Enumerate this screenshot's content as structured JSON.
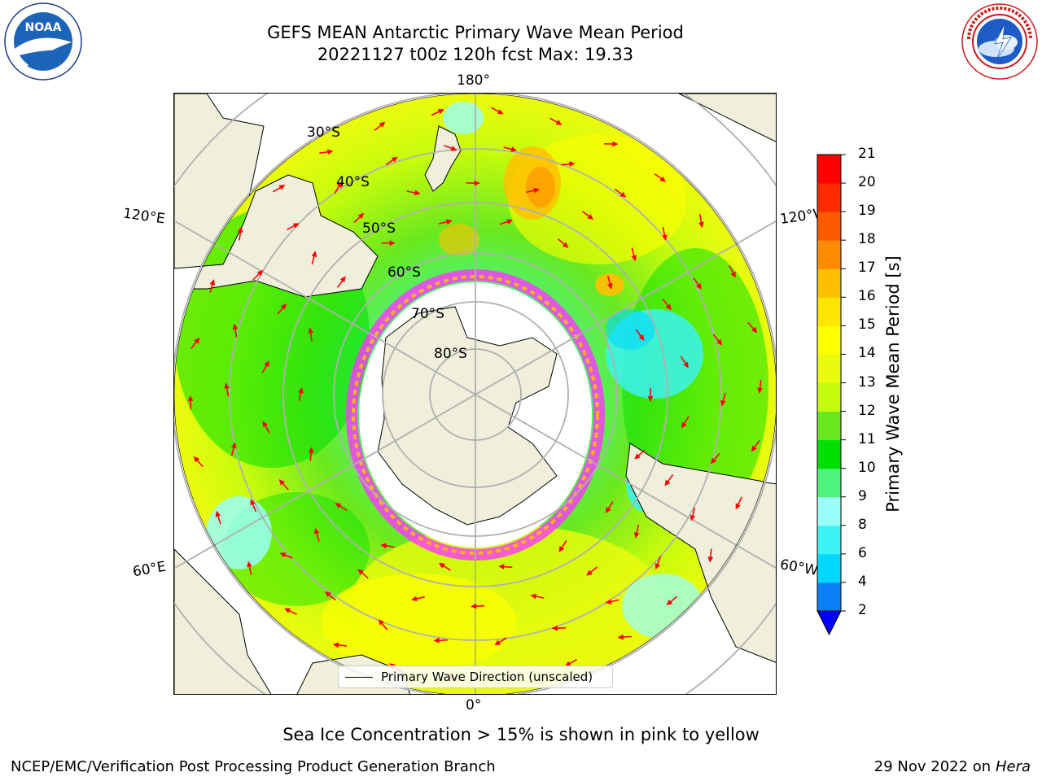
{
  "title": {
    "line1": "GEFS MEAN Antarctic Primary Wave Mean Period",
    "line2": "20221127 t00z 120h fcst   Max: 19.33"
  },
  "logos": {
    "left": {
      "name": "noaa-logo",
      "text": "NOAA",
      "ring_text": "NATIONAL OCEANIC AND ATMOSPHERIC ADMINISTRATION · U.S. DEPARTMENT OF COMMERCE"
    },
    "right": {
      "name": "nws-logo",
      "ring_text": "NATIONAL WEATHER SERVICE"
    }
  },
  "map": {
    "projection": "south-polar-stereographic",
    "longitude_labels": {
      "top": "180°",
      "bottom": "0°",
      "left_upper": "120°E",
      "left_lower": "60°E",
      "right_upper": "120°W",
      "right_lower": "60°W"
    },
    "latitude_labels": [
      "30°S",
      "40°S",
      "50°S",
      "60°S",
      "70°S",
      "80°S"
    ],
    "legend_label": "Primary Wave Direction (unscaled)",
    "colors": {
      "land": "#efefdb",
      "ice": "#ffffff",
      "arrow": "#ff0000",
      "grid": "#b0b0b0",
      "coast": "#000000"
    }
  },
  "colorbar": {
    "label": "Primary Wave Mean Period [s]",
    "ticks": [
      "2",
      "4",
      "6",
      "8",
      "9",
      "10",
      "11",
      "12",
      "13",
      "14",
      "15",
      "16",
      "17",
      "18",
      "19",
      "20",
      "21"
    ],
    "colors": [
      "#0a7ff6",
      "#00d8ff",
      "#3cf2f2",
      "#9afffa",
      "#4df37a",
      "#00e000",
      "#6ae81e",
      "#c5fb0d",
      "#ebfb0e",
      "#ffff00",
      "#ffe500",
      "#ffbf00",
      "#ff8c00",
      "#ff5a00",
      "#ff2a00",
      "#ff0000"
    ],
    "under_color": "#0000ff"
  },
  "chart_data": {
    "type": "heatmap",
    "title": "GEFS MEAN Antarctic Primary Wave Mean Period",
    "subtitle": "20221127 t00z 120h fcst   Max: 19.33",
    "variable": "Primary Wave Mean Period",
    "units": "s",
    "max": 19.33,
    "levels": [
      2,
      4,
      6,
      8,
      9,
      10,
      11,
      12,
      13,
      14,
      15,
      16,
      17,
      18,
      19,
      20,
      21
    ],
    "vector_field": "Primary Wave Direction (unscaled)"
  },
  "notes": {
    "ice": "Sea Ice Concentration > 15% is shown in pink to yellow"
  },
  "footer": {
    "left": "NCEP/EMC/Verification Post Processing Product Generation Branch",
    "date": "29 Nov 2022 on",
    "system": "Hera"
  }
}
